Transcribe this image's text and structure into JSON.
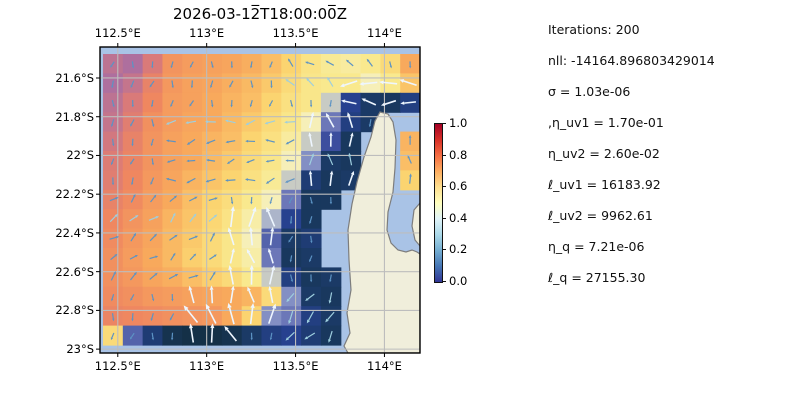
{
  "figure": {
    "background": "#ffffff"
  },
  "stats_panel": {
    "lines": [
      "Iterations: 200",
      "nll: -14164.896803429014",
      "σ = 1.03e-06",
      ",η_uv1 = 1.70e-01",
      "η_uv2 = 2.60e-02",
      "ℓ_uv1 = 16183.92",
      "ℓ_uv2 = 9962.61",
      "η_q = 7.21e-06",
      "ℓ_q = 27155.30"
    ]
  },
  "chart_data": {
    "type": "heatmap",
    "title": "2026-03-12̅T18:00:00̅Z",
    "grid_on": true,
    "extent": {
      "lon": [
        112.4,
        114.2
      ],
      "lat": [
        -23.02,
        -21.44
      ]
    },
    "xticks": {
      "labels": [
        "112.5°E",
        "113°E",
        "113.5°E",
        "114°E"
      ],
      "lons": [
        112.5,
        113.0,
        113.5,
        114.0
      ]
    },
    "yticks": {
      "labels": [
        "21.6°S",
        "21.8°S",
        "22°S",
        "22.2°S",
        "22.4°S",
        "22.6°S",
        "22.8°S",
        "23°S"
      ],
      "lats": [
        -21.6,
        -21.8,
        -22.0,
        -22.2,
        -22.4,
        -22.6,
        -22.8,
        -23.0
      ]
    },
    "colorbar": {
      "tick_labels": [
        "1.0",
        "0.8",
        "0.6",
        "0.4",
        "0.2",
        "0.0"
      ],
      "tick_values": [
        1.0,
        0.8,
        0.6,
        0.4,
        0.2,
        0.0
      ],
      "range": [
        0.0,
        1.0
      ],
      "colors_top_to_bottom": [
        "#a50026",
        "#d73027",
        "#f46d43",
        "#fdae61",
        "#fee090",
        "#ffffbf",
        "#e0f3f8",
        "#abd9e9",
        "#74add1",
        "#4575b4",
        "#313695"
      ]
    },
    "colors": {
      "ocean": "#a9c3e6",
      "land": "#f0eedb",
      "coast": "#7d7d7d",
      "gridline": "#bdbdbd",
      "frame": "#000000"
    },
    "palette_stops": [
      [
        0.0,
        "#102b38"
      ],
      [
        0.06,
        "#1b3a66"
      ],
      [
        0.12,
        "#27418f"
      ],
      [
        0.2,
        "#3c4e9e"
      ],
      [
        0.3,
        "#6c77b8"
      ],
      [
        0.4,
        "#9aa7cf"
      ],
      [
        0.5,
        "#f6efb8"
      ],
      [
        0.55,
        "#f9e98e"
      ],
      [
        0.62,
        "#fbd470"
      ],
      [
        0.7,
        "#f8a95c"
      ],
      [
        0.78,
        "#ef8760"
      ],
      [
        0.84,
        "#d97a79"
      ],
      [
        0.9,
        "#ae6f9e"
      ],
      [
        1.0,
        "#8a63a8"
      ]
    ],
    "grid": {
      "ncols": 16,
      "nrows": 15,
      "land_token": "L",
      "values": [
        [
          0.88,
          0.9,
          0.84,
          0.75,
          0.73,
          0.72,
          0.71,
          0.69,
          0.66,
          0.62,
          0.57,
          0.54,
          0.53,
          0.55,
          0.6,
          0.7
        ],
        [
          0.9,
          0.87,
          0.8,
          0.74,
          0.72,
          0.71,
          0.69,
          0.67,
          0.64,
          0.6,
          0.56,
          0.55,
          0.55,
          0.5,
          0.55,
          0.65
        ],
        [
          0.88,
          0.84,
          0.78,
          0.73,
          0.72,
          0.7,
          0.68,
          0.66,
          0.62,
          0.58,
          0.56,
          0.45,
          0.12,
          0.06,
          0.05,
          0.1
        ],
        [
          0.87,
          0.82,
          0.76,
          0.73,
          0.71,
          0.7,
          0.67,
          0.64,
          0.6,
          0.56,
          0.5,
          0.3,
          0.1,
          0.06,
          "L",
          null
        ],
        [
          0.85,
          0.8,
          0.75,
          0.72,
          0.7,
          0.68,
          0.66,
          0.62,
          0.58,
          0.53,
          0.45,
          0.2,
          0.05,
          "L",
          "L",
          0.68
        ],
        [
          0.83,
          0.79,
          0.75,
          0.72,
          0.7,
          0.67,
          0.64,
          0.6,
          0.56,
          0.5,
          0.35,
          0.06,
          0.05,
          "L",
          "L",
          0.66
        ],
        [
          0.82,
          0.78,
          0.74,
          0.71,
          0.68,
          0.65,
          0.62,
          0.58,
          0.54,
          0.45,
          0.08,
          0.05,
          0.06,
          "L",
          "L",
          0.62
        ],
        [
          0.8,
          0.77,
          0.73,
          0.7,
          0.66,
          0.62,
          0.59,
          0.55,
          0.5,
          0.3,
          0.05,
          0.05,
          null,
          "L",
          "L",
          null
        ],
        [
          0.78,
          0.75,
          0.72,
          0.68,
          0.65,
          0.61,
          0.57,
          0.52,
          0.42,
          0.12,
          0.05,
          null,
          "L",
          "L",
          null,
          null
        ],
        [
          0.77,
          0.74,
          0.71,
          0.67,
          0.64,
          0.6,
          0.56,
          0.5,
          0.25,
          0.06,
          0.08,
          null,
          "L",
          "L",
          null,
          null
        ],
        [
          0.76,
          0.73,
          0.7,
          0.67,
          0.63,
          0.6,
          0.56,
          0.52,
          0.3,
          0.05,
          0.06,
          null,
          "L",
          "L",
          "L",
          "L"
        ],
        [
          0.76,
          0.74,
          0.71,
          0.69,
          0.66,
          0.63,
          0.6,
          0.55,
          0.45,
          0.1,
          0.05,
          0.06,
          null,
          "L",
          "L",
          "L"
        ],
        [
          0.77,
          0.76,
          0.74,
          0.73,
          0.72,
          0.71,
          0.7,
          0.68,
          0.6,
          0.35,
          0.06,
          0.05,
          null,
          "L",
          "L",
          "L"
        ],
        [
          0.79,
          0.78,
          0.77,
          0.76,
          0.75,
          0.74,
          0.7,
          0.62,
          0.35,
          0.3,
          0.1,
          0.06,
          null,
          "L",
          "L",
          "L"
        ],
        [
          0.6,
          0.25,
          0.08,
          0.03,
          0.02,
          0.02,
          0.03,
          0.06,
          0.1,
          0.12,
          0.08,
          0.05,
          null,
          "L",
          "L",
          "L"
        ]
      ]
    },
    "land_polygon": [
      [
        348,
        353
      ],
      [
        344,
        346
      ],
      [
        350,
        333
      ],
      [
        347,
        313
      ],
      [
        351,
        290
      ],
      [
        349,
        260
      ],
      [
        348,
        230
      ],
      [
        352,
        204
      ],
      [
        357,
        182
      ],
      [
        364,
        157
      ],
      [
        371,
        137
      ],
      [
        375,
        121
      ],
      [
        380,
        112
      ],
      [
        388,
        114
      ],
      [
        393,
        122
      ],
      [
        396,
        140
      ],
      [
        395,
        168
      ],
      [
        393,
        192
      ],
      [
        388,
        212
      ],
      [
        387,
        230
      ],
      [
        391,
        243
      ],
      [
        398,
        250
      ],
      [
        406,
        252
      ],
      [
        412,
        250
      ],
      [
        417,
        252
      ],
      [
        420,
        254
      ],
      [
        420,
        353
      ]
    ],
    "east_shore_polygon": [
      [
        420,
        203
      ],
      [
        414,
        210
      ],
      [
        412,
        226
      ],
      [
        415,
        240
      ],
      [
        420,
        246
      ]
    ],
    "quiver": {
      "arrow_colors": {
        "low": "#5c93c4",
        "mid": "#9ecfdf",
        "high": "#eef6ff"
      },
      "flows": [
        {
          "cols": [
            0,
            15
          ],
          "rows": [
            0,
            14
          ],
          "angle_deg": -100,
          "magnitude": 0.16
        },
        {
          "cols": [
            3,
            9
          ],
          "rows": [
            3,
            6
          ],
          "angle_deg": 190,
          "magnitude": 0.3
        },
        {
          "cols": [
            9,
            13
          ],
          "rows": [
            0,
            1
          ],
          "angle_deg": 145,
          "magnitude": 0.35
        },
        {
          "cols": [
            12,
            15
          ],
          "rows": [
            1,
            2
          ],
          "angle_deg": 180,
          "magnitude": 0.75
        },
        {
          "cols": [
            10,
            12
          ],
          "rows": [
            3,
            6
          ],
          "angle_deg": 95,
          "magnitude": 0.6
        },
        {
          "cols": [
            0,
            5
          ],
          "rows": [
            7,
            11
          ],
          "angle_deg": 40,
          "magnitude": 0.3
        },
        {
          "cols": [
            6,
            8
          ],
          "rows": [
            8,
            13
          ],
          "angle_deg": 95,
          "magnitude": 0.85
        },
        {
          "cols": [
            4,
            6
          ],
          "rows": [
            12,
            14
          ],
          "angle_deg": 105,
          "magnitude": 0.9
        },
        {
          "cols": [
            9,
            11
          ],
          "rows": [
            12,
            14
          ],
          "angle_deg": -125,
          "magnitude": 0.45
        },
        {
          "cols": [
            15,
            15
          ],
          "rows": [
            4,
            6
          ],
          "angle_deg": 90,
          "magnitude": 0.3
        }
      ]
    }
  }
}
